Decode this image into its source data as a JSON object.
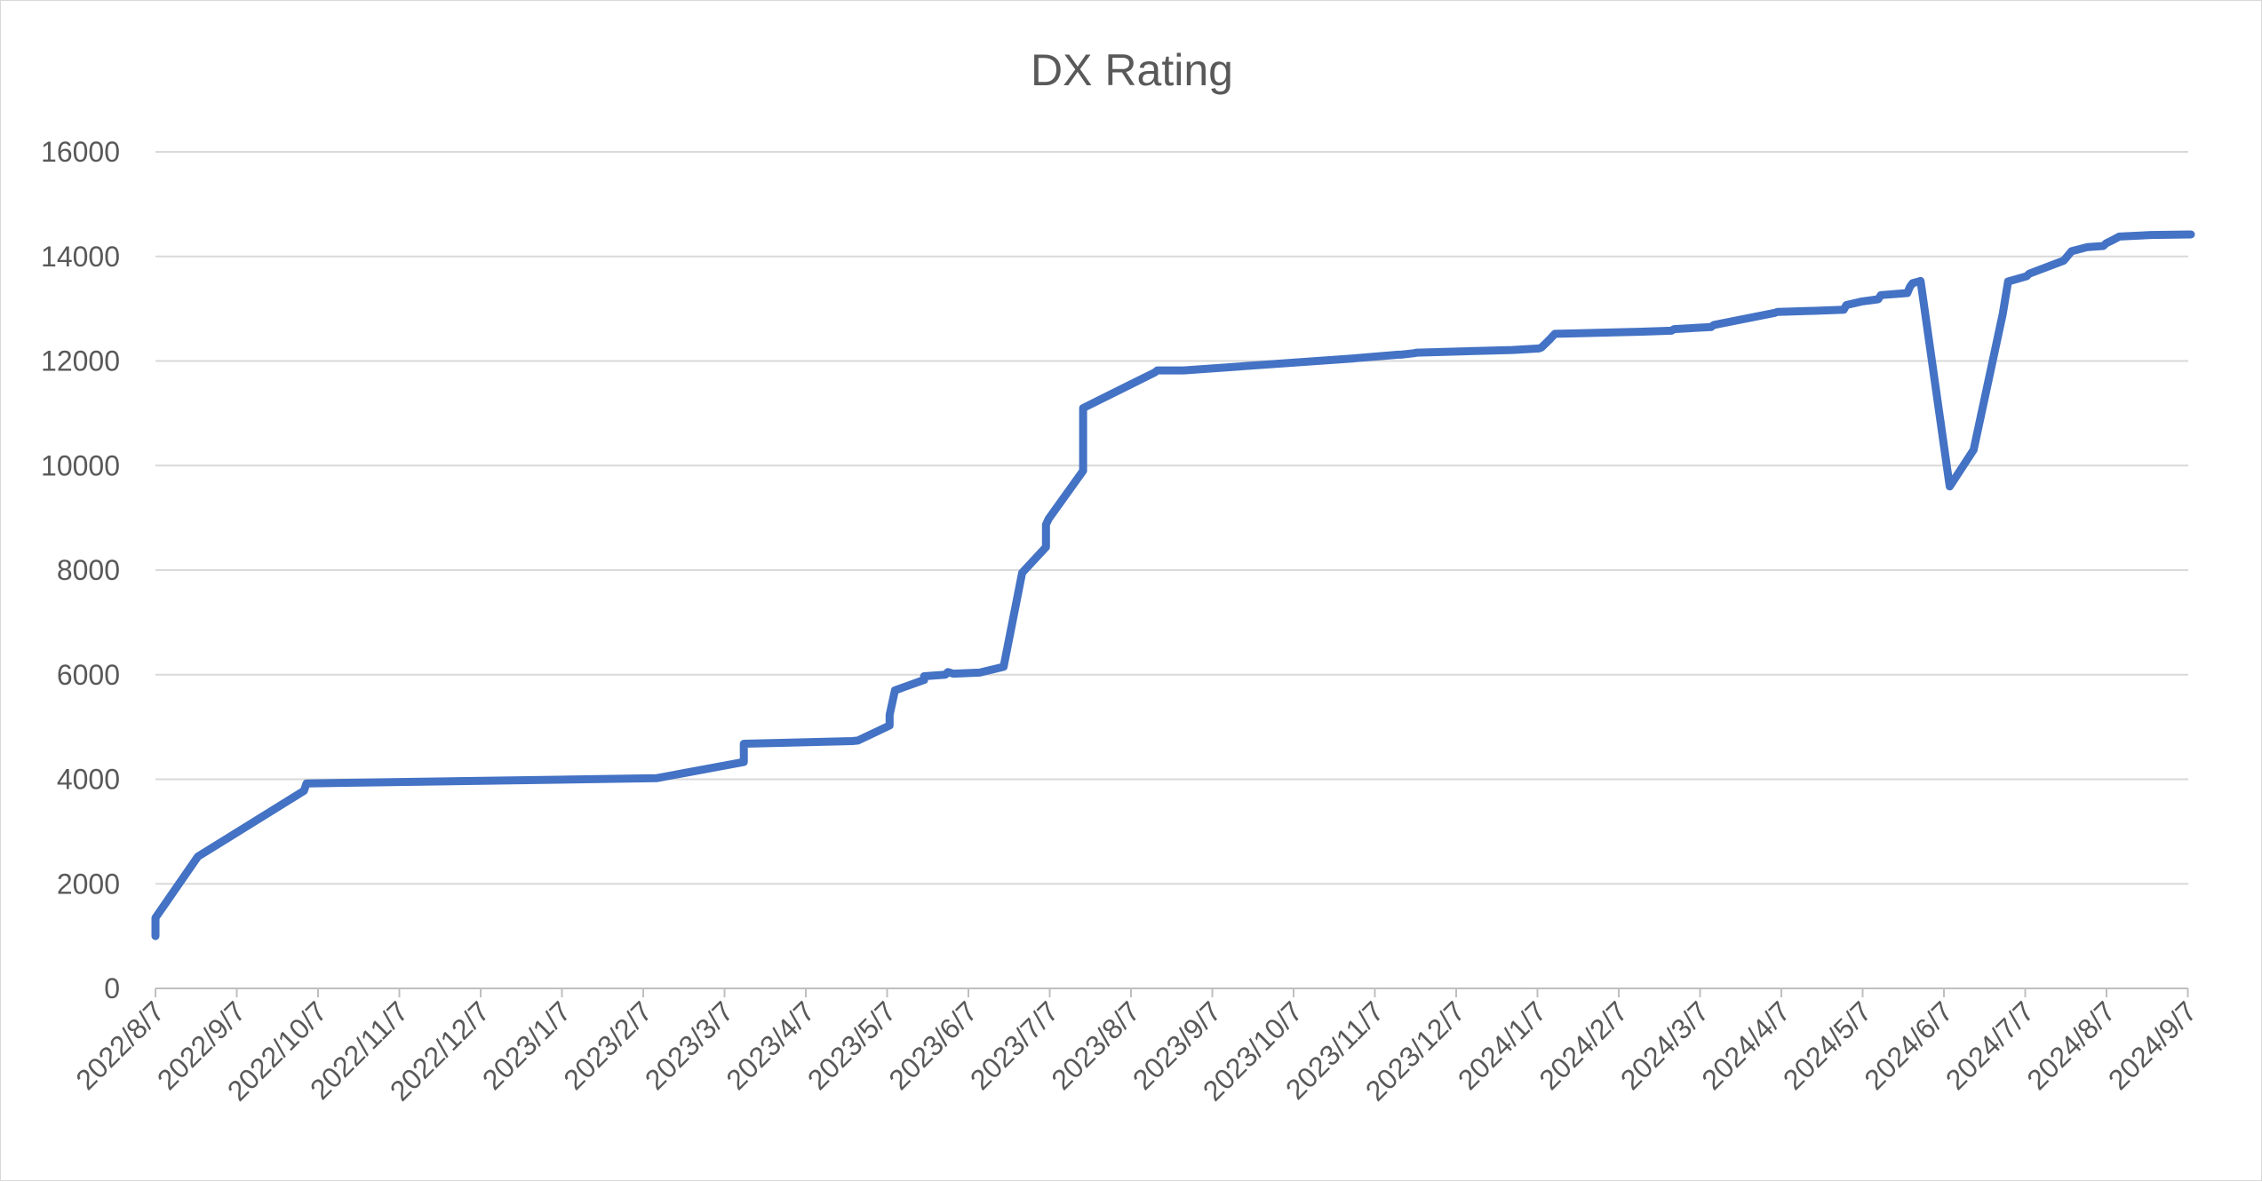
{
  "chart_data": {
    "type": "line",
    "title": "DX Rating",
    "xlabel": "",
    "ylabel": "",
    "ylim": [
      0,
      16000
    ],
    "yticks": [
      0,
      2000,
      4000,
      6000,
      8000,
      10000,
      12000,
      14000,
      16000
    ],
    "grid": true,
    "legend": "none",
    "x_tick_labels": [
      "2022/8/7",
      "2022/9/7",
      "2022/10/7",
      "2022/11/7",
      "2022/12/7",
      "2023/1/7",
      "2023/2/7",
      "2023/3/7",
      "2023/4/7",
      "2023/5/7",
      "2023/6/7",
      "2023/7/7",
      "2023/8/7",
      "2023/9/7",
      "2023/10/7",
      "2023/11/7",
      "2023/12/7",
      "2024/1/7",
      "2024/2/7",
      "2024/3/7",
      "2024/4/7",
      "2024/5/7",
      "2024/6/7",
      "2024/7/7",
      "2024/8/7",
      "2024/9/7"
    ],
    "x_range_days": [
      0,
      767
    ],
    "series": [
      {
        "name": "DX Rating",
        "color": "#4472C4",
        "x_days": [
          0,
          0,
          16,
          56,
          57,
          189,
          222,
          222,
          263,
          265,
          277,
          277,
          279,
          290,
          290,
          298,
          299,
          301,
          311,
          320,
          327,
          336,
          336,
          337,
          350,
          350,
          377,
          378,
          388,
          452,
          469,
          470,
          475,
          476,
          512,
          522,
          523,
          526,
          528,
          561,
          572,
          573,
          587,
          588,
          611,
          612,
          626,
          637,
          638,
          644,
          650,
          651,
          661,
          662,
          663,
          666,
          677,
          686,
          697,
          699,
          706,
          707,
          720,
          723,
          729,
          735,
          736,
          738,
          741,
          753,
          768
        ],
        "values": [
          1000,
          1350,
          2520,
          3780,
          3920,
          4020,
          4330,
          4680,
          4730,
          4740,
          5030,
          5230,
          5700,
          5900,
          5970,
          6000,
          6050,
          6020,
          6040,
          6150,
          7950,
          8440,
          8870,
          8980,
          9900,
          11100,
          11780,
          11820,
          11820,
          12050,
          12120,
          12120,
          12150,
          12160,
          12210,
          12240,
          12260,
          12410,
          12520,
          12560,
          12580,
          12610,
          12650,
          12690,
          12920,
          12940,
          12960,
          12980,
          13070,
          13140,
          13180,
          13260,
          13300,
          13420,
          13490,
          13530,
          9600,
          10300,
          12900,
          13520,
          13620,
          13670,
          13920,
          14100,
          14180,
          14200,
          14250,
          14300,
          14380,
          14410,
          14420
        ]
      }
    ]
  }
}
